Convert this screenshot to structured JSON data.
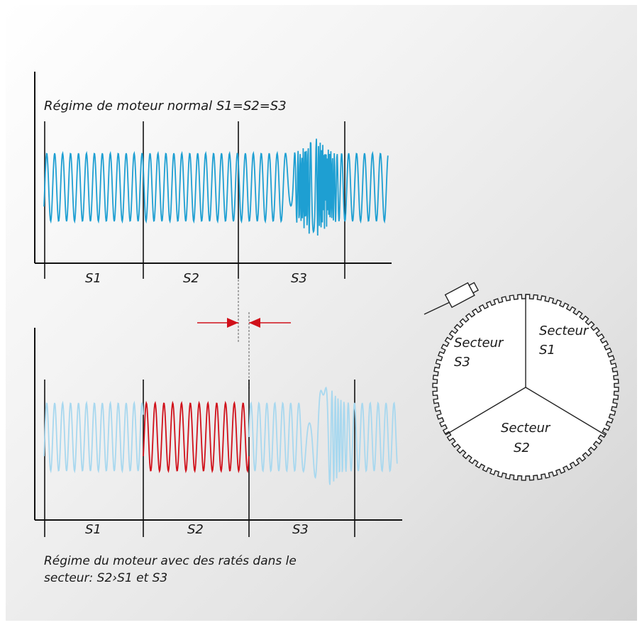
{
  "top_chart": {
    "title": "Régime de moteur normal S1=S2=S3",
    "sectors": [
      "S1",
      "S2",
      "S3"
    ]
  },
  "bottom_chart": {
    "caption_line1": "Régime du moteur avec des ratés dans le",
    "caption_line2": "secteur: S2›S1 et S3",
    "sectors": [
      "S1",
      "S2",
      "S3"
    ]
  },
  "wheel": {
    "sector_s1": [
      "Secteur",
      "S1"
    ],
    "sector_s2": [
      "Secteur",
      "S2"
    ],
    "sector_s3": [
      "Secteur",
      "S3"
    ]
  },
  "colors": {
    "signal_normal": "#1e9fd2",
    "signal_faded": "#a8d8ef",
    "signal_misfire": "#d0101a",
    "arrow": "#d0101a",
    "axis": "#111111"
  }
}
